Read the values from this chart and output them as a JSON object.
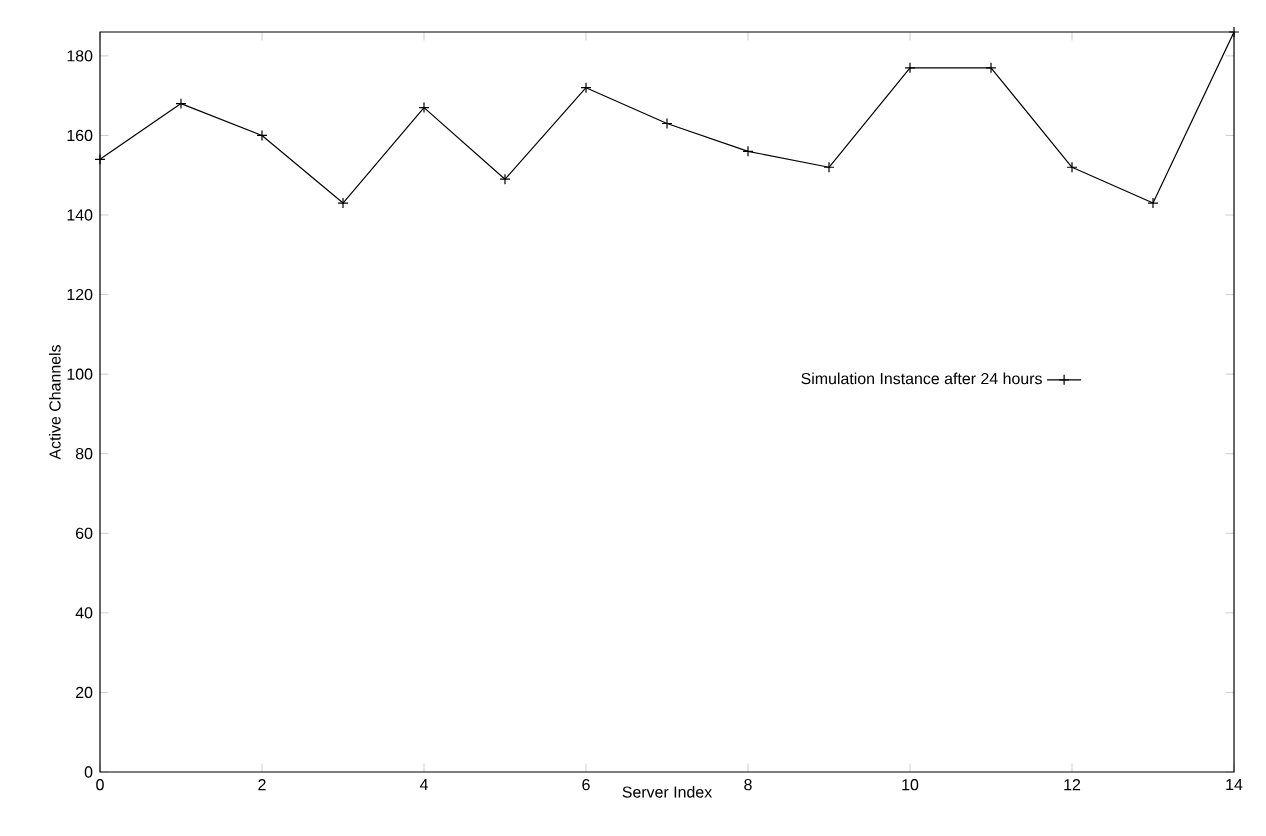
{
  "chart_data": {
    "type": "line",
    "xlabel": "Server Index",
    "ylabel": "Active Channels",
    "x": [
      0,
      1,
      2,
      3,
      4,
      5,
      6,
      7,
      8,
      9,
      10,
      11,
      12,
      13,
      14
    ],
    "series": [
      {
        "name": "Simulation Instance after 24 hours",
        "color": "#000000",
        "values": [
          154,
          168,
          160,
          143,
          167,
          149,
          172,
          163,
          156,
          152,
          177,
          177,
          152,
          143,
          186
        ]
      }
    ],
    "xlim": [
      0,
      14
    ],
    "xticks": [
      0,
      2,
      4,
      6,
      8,
      10,
      12,
      14
    ],
    "ylim": [
      0,
      186
    ],
    "yticks": [
      0,
      20,
      40,
      60,
      80,
      100,
      120,
      140,
      160,
      180
    ],
    "marker": "cross",
    "line_style": "solid",
    "legend": "center right",
    "grid": false
  }
}
